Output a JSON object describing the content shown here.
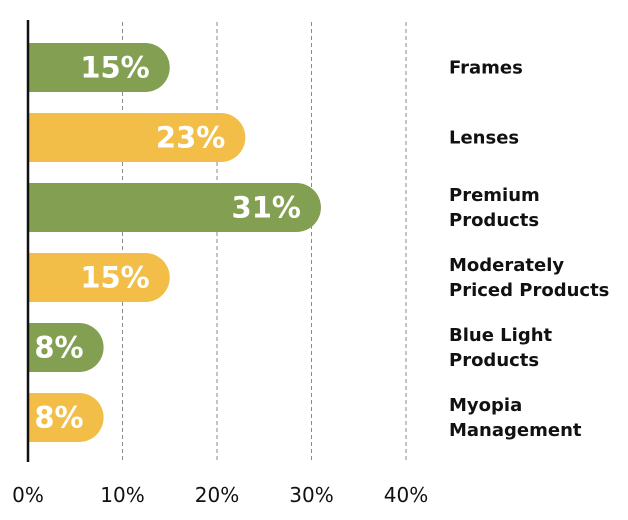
{
  "chart_data": {
    "type": "bar",
    "orientation": "horizontal",
    "categories": [
      "Frames",
      "Lenses",
      "Premium Products",
      "Moderately Priced Products",
      "Blue Light Products",
      "Myopia Management"
    ],
    "category_lines": [
      [
        "Frames"
      ],
      [
        "Lenses"
      ],
      [
        "Premium",
        "Products"
      ],
      [
        "Moderately",
        "Priced Products"
      ],
      [
        "Blue Light",
        "Products"
      ],
      [
        "Myopia",
        "Management"
      ]
    ],
    "values": [
      15,
      23,
      31,
      15,
      8,
      8
    ],
    "value_labels": [
      "15%",
      "23%",
      "31%",
      "15%",
      "8%",
      "8%"
    ],
    "bar_colors": [
      "#83A052",
      "#F2BE47",
      "#83A052",
      "#F2BE47",
      "#83A052",
      "#F2BE47"
    ],
    "xlim": [
      0,
      40
    ],
    "x_ticks": [
      0,
      10,
      20,
      30,
      40
    ],
    "x_tick_labels": [
      "0%",
      "10%",
      "20%",
      "30%",
      "40%"
    ],
    "grid": "vertical dashed",
    "title": "",
    "xlabel": "",
    "ylabel": ""
  }
}
